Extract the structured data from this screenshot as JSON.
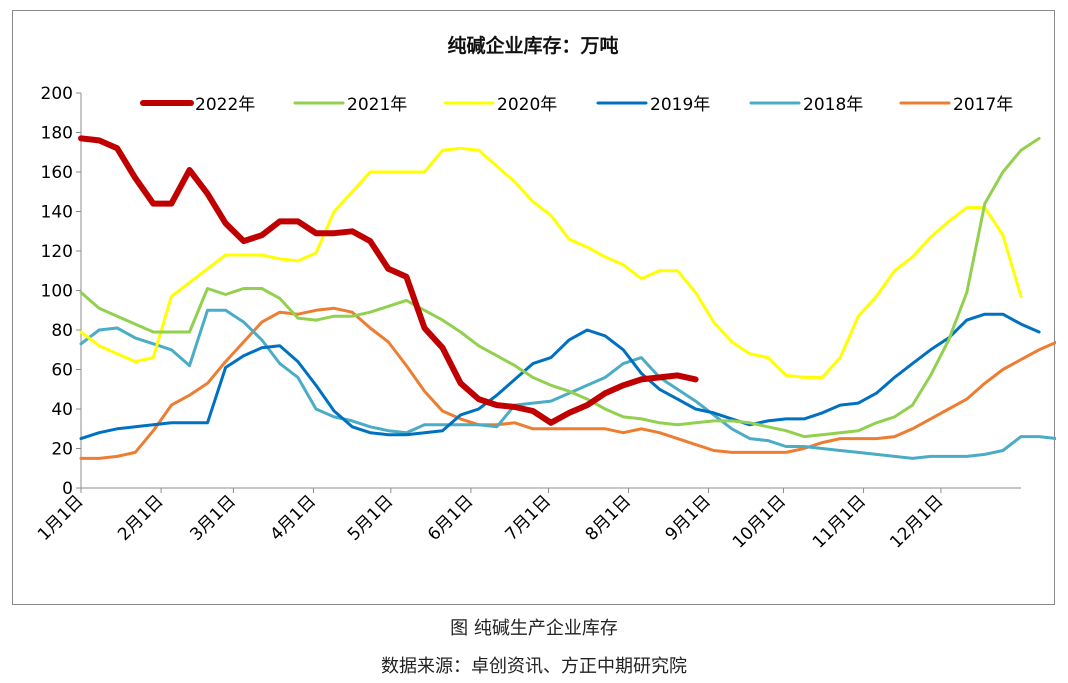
{
  "chart_data": {
    "type": "line",
    "title": "纯碱企业库存：万吨",
    "ylim": [
      0,
      200
    ],
    "yticks": [
      0,
      20,
      40,
      60,
      80,
      100,
      120,
      140,
      160,
      180,
      200
    ],
    "xlim": [
      0,
      52
    ],
    "x_unit": "week",
    "x_tick_weeks": [
      0,
      4.43,
      8.43,
      12.86,
      17.14,
      21.57,
      25.86,
      30.29,
      34.71,
      38.86,
      43.29,
      47.57
    ],
    "x_tick_labels": [
      "1月1日",
      "2月1日",
      "3月1日",
      "4月1日",
      "5月1日",
      "6月1日",
      "7月1日",
      "8月1日",
      "9月1日",
      "10月1日",
      "11月1日",
      "12月1日"
    ],
    "legend_position": "top",
    "series": [
      {
        "name": "2022年",
        "color": "#c00000",
        "values": [
          177,
          176,
          172,
          157,
          144,
          144,
          161,
          149,
          134,
          125,
          128,
          135,
          135,
          129,
          129,
          130,
          125,
          111,
          107,
          81,
          71,
          53,
          45,
          42,
          41,
          39,
          33,
          38,
          42,
          48,
          52,
          55,
          56,
          57,
          55
        ]
      },
      {
        "name": "2021年",
        "color": "#92d050",
        "values": [
          99,
          91,
          87,
          83,
          79,
          79,
          79,
          101,
          98,
          101,
          101,
          96,
          86,
          85,
          87,
          87,
          89,
          92,
          95,
          90,
          85,
          79,
          72,
          67,
          62,
          56,
          52,
          49,
          45,
          40,
          36,
          35,
          33,
          32,
          33,
          34,
          34,
          33,
          31,
          29,
          26,
          27,
          28,
          29,
          33,
          36,
          42,
          57,
          75,
          99,
          144,
          160,
          171,
          177
        ]
      },
      {
        "name": "2020年",
        "color": "#ffff00",
        "values": [
          79,
          72,
          68,
          64,
          66,
          97,
          104,
          111,
          118,
          118,
          118,
          116,
          115,
          119,
          140,
          150,
          160,
          160,
          160,
          160,
          171,
          172,
          171,
          163,
          155,
          145,
          138,
          126,
          122,
          117,
          113,
          106,
          110,
          110,
          99,
          84,
          74,
          68,
          66,
          57,
          56,
          56,
          66,
          87,
          97,
          110,
          117,
          127,
          135,
          142,
          142,
          128,
          97
        ]
      },
      {
        "name": "2019年",
        "color": "#0070c0",
        "values": [
          25,
          28,
          30,
          31,
          32,
          33,
          33,
          33,
          61,
          67,
          71,
          72,
          64,
          52,
          39,
          31,
          28,
          27,
          27,
          28,
          29,
          37,
          40,
          47,
          55,
          63,
          66,
          75,
          80,
          77,
          70,
          58,
          50,
          45,
          40,
          38,
          35,
          32,
          34,
          35,
          35,
          38,
          42,
          43,
          48,
          56,
          63,
          70,
          76,
          85,
          88,
          88,
          83,
          79
        ]
      },
      {
        "name": "2018年",
        "color": "#4bacc6",
        "values": [
          73,
          80,
          81,
          76,
          73,
          70,
          62,
          90,
          90,
          84,
          75,
          63,
          56,
          40,
          36,
          34,
          31,
          29,
          28,
          32,
          32,
          32,
          32,
          31,
          42,
          43,
          44,
          48,
          52,
          56,
          63,
          66,
          56,
          50,
          44,
          37,
          30,
          25,
          24,
          21,
          21,
          20,
          19,
          18,
          17,
          16,
          15,
          16,
          16,
          16,
          17,
          19,
          26,
          26,
          25
        ]
      },
      {
        "name": "2017年",
        "color": "#ed7d31",
        "values": [
          15,
          15,
          16,
          18,
          29,
          42,
          47,
          53,
          64,
          74,
          84,
          89,
          88,
          90,
          91,
          89,
          81,
          74,
          62,
          49,
          39,
          35,
          32,
          32,
          33,
          30,
          30,
          30,
          30,
          30,
          28,
          30,
          28,
          25,
          22,
          19,
          18,
          18,
          18,
          18,
          20,
          23,
          25,
          25,
          25,
          26,
          30,
          35,
          40,
          45,
          53,
          60,
          65,
          70,
          74
        ]
      }
    ]
  },
  "captions": {
    "figure": "图    纯碱生产企业库存",
    "source": "数据来源：卓创资讯、方正中期研究院"
  }
}
